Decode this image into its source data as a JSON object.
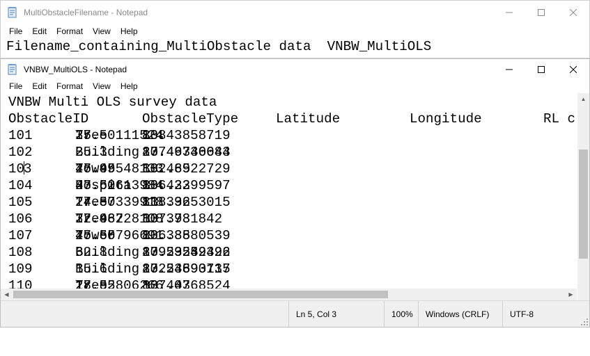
{
  "back_window": {
    "title": "MultiObstacleFilename - Notepad",
    "menu": [
      "File",
      "Edit",
      "Format",
      "View",
      "Help"
    ],
    "content": "Filename_containing_MultiObstacle data  VNBW_MultiOLS"
  },
  "front_window": {
    "title": "VNBW_MultiOLS - Notepad",
    "menu": [
      "File",
      "Edit",
      "Format",
      "View",
      "Help"
    ],
    "header_line": "VNBW Multi OLS survey data",
    "columns": [
      "ObstacleID",
      "ObstacleType",
      "Latitude",
      "Longitude",
      "RL c"
    ],
    "rows": [
      {
        "id": "101",
        "type": "Tree",
        "lat": "27.50111524",
        "lon": "83.43858719",
        "a": "108",
        "b": "35",
        "c": ""
      },
      {
        "id": "102",
        "type": "Building",
        "lat": "27.49746084",
        "lon": "83.46330643",
        "a": "107",
        "b": "25.3",
        "c": ""
      },
      {
        "id": "103",
        "type": "Tower",
        "lat": "27.49548133",
        "lon": "83.48922729",
        "a": "102.65",
        "b": "46.95",
        "c": ""
      },
      {
        "id": "104",
        "type": "Hospita",
        "lat": "27.50613984",
        "lon": "83.42399597",
        "a": "106.32",
        "b": "43.62",
        "c": ""
      },
      {
        "id": "105",
        "type": "Tree",
        "lat": "27.50339918",
        "lon": "83.39653015",
        "a": "118.32",
        "b": "24.87",
        "c": ""
      },
      {
        "id": "106",
        "type": "Tree",
        "lat": "27.46228108",
        "lon": "83.3731842",
        "a": "107.98",
        "b": "32.987",
        "c": ""
      },
      {
        "id": "107",
        "type": "Tower",
        "lat": "27.50796691",
        "lon": "83.38880539",
        "a": "106.35",
        "b": "45.65",
        "c": ""
      },
      {
        "id": "108",
        "type": "Building",
        "lat": "27.53232492",
        "lon": "83.29559326",
        "a": "109.324",
        "b": "62.8",
        "c": ""
      },
      {
        "id": "109",
        "type": "Building",
        "lat": "27.54693715",
        "lon": "83.24890137",
        "a": "102.35",
        "b": "15.6",
        "c": ""
      },
      {
        "id": "110",
        "type": "Tree",
        "lat": "27.52806266",
        "lon": "83.44768524",
        "a": "107.03",
        "b": "18.95",
        "c": ""
      }
    ],
    "status": {
      "position": "Ln 5, Col 3",
      "zoom": "100%",
      "line_ending": "Windows (CRLF)",
      "encoding": "UTF-8"
    }
  },
  "colors": {
    "scrollbar_track": "#f0f0f0",
    "scrollbar_thumb": "#c1c1c1",
    "statusbar_bg": "#f0f0f0"
  }
}
